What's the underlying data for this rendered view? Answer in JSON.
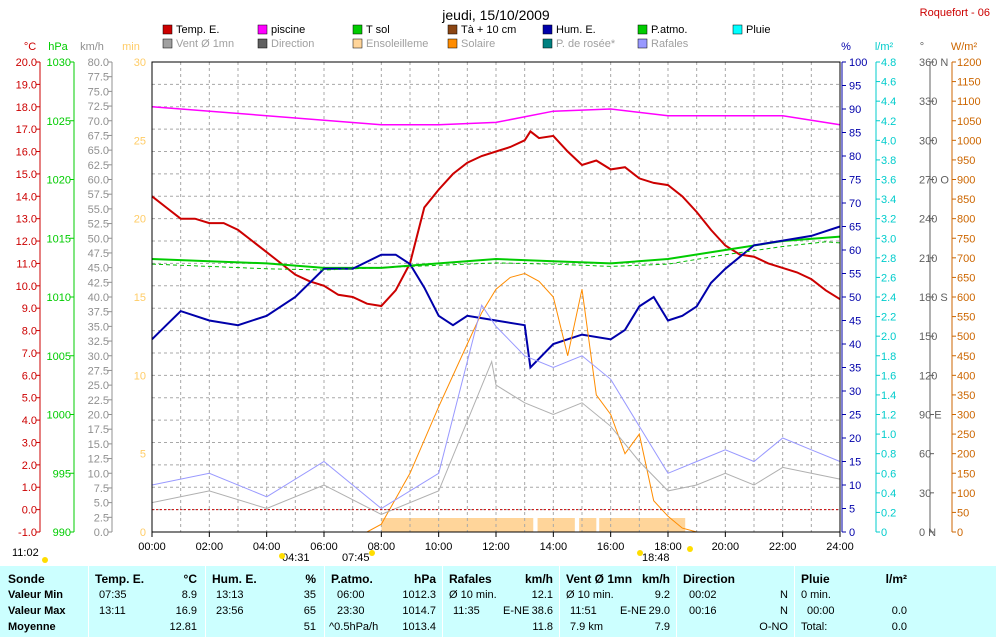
{
  "title": "jeudi, 15/10/2009",
  "station": "Roquefort - 06",
  "legend": [
    {
      "label": "Temp. E.",
      "color": "#cc0000"
    },
    {
      "label": "piscine",
      "color": "#ff00ff"
    },
    {
      "label": "T sol",
      "color": "#00cc00"
    },
    {
      "label": "Tà + 10 cm",
      "color": "#8b4513"
    },
    {
      "label": "Hum. E.",
      "color": "#0000aa"
    },
    {
      "label": "P.atmo.",
      "color": "#00cc00"
    },
    {
      "label": "Pluie",
      "color": "#00ffff"
    },
    {
      "label": "Vent Ø 1mn",
      "color": "#a0a0a0"
    },
    {
      "label": "Direction",
      "color": "#606060"
    },
    {
      "label": "Ensoleilleme",
      "color": "#ffd59a"
    },
    {
      "label": "Solaire",
      "color": "#ff8c00"
    },
    {
      "label": "P. de rosée*",
      "color": "#008080"
    },
    {
      "label": "Rafales",
      "color": "#9999ff"
    }
  ],
  "axes": {
    "temp": {
      "unit": "°C",
      "color": "#cc0000",
      "ticks": [
        "20.0",
        "19.0",
        "18.0",
        "17.0",
        "16.0",
        "15.0",
        "14.0",
        "13.0",
        "12.0",
        "11.0",
        "10.0",
        "9.0",
        "8.0",
        "7.0",
        "6.0",
        "5.0",
        "4.0",
        "3.0",
        "2.0",
        "1.0",
        "0.0",
        "-1.0"
      ]
    },
    "pressure": {
      "unit": "hPa",
      "color": "#00cc00",
      "ticks": [
        "1030",
        "1025",
        "1020",
        "1015",
        "1010",
        "1005",
        "1000",
        "995",
        "990"
      ]
    },
    "wind": {
      "unit": "km/h",
      "color": "#909090",
      "ticks": [
        "80.0",
        "77.5",
        "75.0",
        "72.5",
        "70.0",
        "67.5",
        "65.0",
        "62.5",
        "60.0",
        "57.5",
        "55.0",
        "52.5",
        "50.0",
        "47.5",
        "45.0",
        "42.5",
        "40.0",
        "37.5",
        "35.0",
        "32.5",
        "30.0",
        "27.5",
        "25.0",
        "22.5",
        "20.0",
        "17.5",
        "15.0",
        "12.5",
        "10.0",
        "7.5",
        "5.0",
        "2.5",
        "0.0"
      ]
    },
    "minutes": {
      "unit": "min",
      "color": "#ffcc66",
      "ticks": [
        "30",
        "25",
        "20",
        "15",
        "10",
        "5",
        "0"
      ]
    },
    "humidity": {
      "unit": "%",
      "color": "#0000aa",
      "ticks": [
        "100",
        "95",
        "90",
        "85",
        "80",
        "75",
        "70",
        "65",
        "60",
        "55",
        "50",
        "45",
        "40",
        "35",
        "30",
        "25",
        "20",
        "15",
        "10",
        "5",
        "0"
      ]
    },
    "rain": {
      "unit": "l/m²",
      "color": "#00cccc",
      "ticks": [
        "4.8",
        "4.6",
        "4.4",
        "4.2",
        "4.0",
        "3.8",
        "3.6",
        "3.4",
        "3.2",
        "3.0",
        "2.8",
        "2.6",
        "2.4",
        "2.2",
        "2.0",
        "1.8",
        "1.6",
        "1.4",
        "1.2",
        "1.0",
        "0.8",
        "0.6",
        "0.4",
        "0.2",
        "0"
      ]
    },
    "direction": {
      "unit": "°",
      "color": "#606060",
      "ticks": [
        "360 N",
        "330",
        "300",
        "270 O",
        "240",
        "210",
        "180 S",
        "150",
        "120",
        "90 E",
        "60",
        "30",
        "0 N"
      ]
    },
    "solar": {
      "unit": "W/m²",
      "color": "#cc6600",
      "ticks": [
        "1200",
        "1150",
        "1100",
        "1050",
        "1000",
        "950",
        "900",
        "850",
        "800",
        "750",
        "700",
        "650",
        "600",
        "550",
        "500",
        "450",
        "400",
        "350",
        "300",
        "250",
        "200",
        "150",
        "100",
        "50",
        "0"
      ]
    }
  },
  "time_ticks": [
    "00:00",
    "02:00",
    "04:00",
    "06:00",
    "08:00",
    "10:00",
    "12:00",
    "14:00",
    "16:00",
    "18:00",
    "20:00",
    "22:00",
    "24:00"
  ],
  "sun_markers": [
    "11:02",
    "04:31",
    "07:45",
    "18:48"
  ],
  "stats": {
    "sonde": {
      "h": "Sonde",
      "r1": "Valeur Min",
      "r2": "Valeur Max",
      "r3": "Moyenne"
    },
    "temp": {
      "h": "Temp. E.",
      "u": "°C",
      "r1t": "07:35",
      "r1v": "8.9",
      "r2t": "13:11",
      "r2v": "16.9",
      "r3v": "12.81"
    },
    "hum": {
      "h": "Hum. E.",
      "u": "%",
      "r1t": "13:13",
      "r1v": "35",
      "r2t": "23:56",
      "r2v": "65",
      "r3v": "51"
    },
    "patmo": {
      "h": "P.atmo.",
      "u": "hPa",
      "r1t": "06:00",
      "r1v": "1012.3",
      "r2t": "23:30",
      "r2v": "1014.7",
      "r3t": "^0.5hPa/h",
      "r3v": "1013.4"
    },
    "rafales": {
      "h": "Rafales",
      "u": "km/h",
      "r1t": "Ø 10 min.",
      "r1v": "12.1",
      "r2t": "11:35",
      "r2d": "E-NE",
      "r2v": "38.6",
      "r3v": "11.8"
    },
    "vent": {
      "h": "Vent Ø 1mn",
      "u": "km/h",
      "r1t": "Ø 10 min.",
      "r1v": "9.2",
      "r2t": "11:51",
      "r2d": "E-NE",
      "r2v": "29.0",
      "r3t": "7.9 km",
      "r3v": "7.9"
    },
    "direction": {
      "h": "Direction",
      "r1t": "00:02",
      "r1v": "N",
      "r2t": "00:16",
      "r2v": "N",
      "r3v": "O-NO"
    },
    "pluie": {
      "h": "Pluie",
      "u": "l/m²",
      "r1t": "0 min.",
      "r2t": "00:00",
      "r2v": "0.0",
      "r3t": "Total:",
      "r3v": "0.0"
    }
  },
  "chart_data": {
    "type": "line",
    "title": "jeudi, 15/10/2009",
    "x_range": [
      "00:00",
      "24:00"
    ],
    "series": [
      {
        "name": "Temp. E.",
        "axis": "°C",
        "x": [
          0,
          0.5,
          1,
          1.5,
          2,
          2.5,
          3,
          3.5,
          4,
          4.5,
          5,
          5.5,
          6,
          6.5,
          7,
          7.5,
          8,
          8.5,
          9,
          9.5,
          10,
          10.5,
          11,
          11.5,
          12,
          12.5,
          13,
          13.2,
          13.5,
          14,
          14.5,
          15,
          15.5,
          16,
          16.5,
          17,
          17.5,
          18,
          18.5,
          19,
          19.5,
          20,
          20.5,
          21,
          21.5,
          22,
          22.5,
          23,
          23.5,
          24
        ],
        "y": [
          14.0,
          13.5,
          13.0,
          13.0,
          12.8,
          12.8,
          12.5,
          12.0,
          11.5,
          11.0,
          10.5,
          10.2,
          10.0,
          9.6,
          9.5,
          9.2,
          9.1,
          9.8,
          11.0,
          13.5,
          14.3,
          15.0,
          15.5,
          15.8,
          16.0,
          16.2,
          16.5,
          16.9,
          16.6,
          16.7,
          16.0,
          15.4,
          15.6,
          15.2,
          15.3,
          14.8,
          14.6,
          14.5,
          14.0,
          13.3,
          12.5,
          11.8,
          11.4,
          11.3,
          11.0,
          10.8,
          10.6,
          10.3,
          9.8,
          9.4
        ]
      },
      {
        "name": "T sol",
        "axis": "°C",
        "x": [
          0,
          2,
          4,
          6,
          8,
          10,
          12,
          14,
          16,
          18,
          20,
          22,
          24
        ],
        "y": [
          11.2,
          11.1,
          11.0,
          10.8,
          10.8,
          11.0,
          11.2,
          11.1,
          11.0,
          11.2,
          11.6,
          12.0,
          12.2
        ]
      },
      {
        "name": "piscine",
        "axis": "°C",
        "x": [
          0,
          4,
          8,
          10,
          12,
          14,
          16,
          18,
          20,
          22,
          24
        ],
        "y": [
          18.0,
          17.6,
          17.2,
          17.2,
          17.3,
          17.8,
          17.9,
          17.6,
          17.6,
          17.6,
          17.2
        ]
      },
      {
        "name": "Hum. E.",
        "axis": "%",
        "x": [
          0,
          0.5,
          1,
          2,
          3,
          4,
          5,
          6,
          7,
          8,
          8.5,
          9,
          9.5,
          10,
          10.5,
          11,
          12,
          13,
          13.2,
          14,
          15,
          16,
          16.5,
          17,
          17.5,
          18,
          18.5,
          19,
          19.5,
          20,
          21,
          22,
          23,
          24
        ],
        "y": [
          41,
          44,
          47,
          45,
          44,
          46,
          50,
          56,
          56,
          59,
          59,
          57,
          52,
          46,
          44,
          46,
          45,
          44,
          35,
          40,
          42,
          41,
          43,
          48,
          50,
          45,
          46,
          48,
          53,
          56,
          61,
          62,
          63,
          65
        ]
      },
      {
        "name": "P.atmo.",
        "axis": "hPa",
        "x": [
          0,
          2,
          4,
          6,
          8,
          10,
          12,
          14,
          16,
          18,
          20,
          22,
          23.5,
          24
        ],
        "y": [
          1012.8,
          1012.6,
          1012.4,
          1012.3,
          1012.5,
          1012.7,
          1012.9,
          1012.8,
          1012.6,
          1012.8,
          1013.6,
          1014.3,
          1014.7,
          1014.6
        ]
      },
      {
        "name": "Solaire",
        "axis": "W/m²",
        "x": [
          0,
          7.5,
          8,
          9,
          10,
          11,
          11.5,
          12,
          12.5,
          13,
          13.5,
          14,
          14.5,
          15,
          15.5,
          16,
          16.5,
          17,
          17.5,
          18,
          18.5,
          19,
          24
        ],
        "y": [
          0,
          0,
          20,
          150,
          320,
          480,
          560,
          620,
          650,
          660,
          640,
          600,
          450,
          620,
          350,
          300,
          200,
          250,
          80,
          40,
          10,
          0,
          0
        ]
      },
      {
        "name": "Rafales",
        "axis": "km/h",
        "x": [
          0,
          2,
          4,
          6,
          8,
          10,
          11.5,
          12,
          13,
          14,
          15,
          16,
          17,
          18,
          19,
          20,
          21,
          22,
          23,
          24
        ],
        "y": [
          8,
          10,
          6,
          12,
          4,
          10,
          38.6,
          35,
          30,
          28,
          30,
          26,
          18,
          10,
          12,
          14,
          12,
          16,
          14,
          12
        ]
      },
      {
        "name": "Vent Ø 1mn",
        "axis": "km/h",
        "x": [
          0,
          2,
          4,
          6,
          8,
          10,
          11.85,
          12,
          13,
          14,
          15,
          16,
          17,
          18,
          19,
          20,
          21,
          22,
          23,
          24
        ],
        "y": [
          5,
          7,
          4,
          8,
          3,
          7,
          29.0,
          25,
          22,
          20,
          22,
          18,
          12,
          7,
          8,
          10,
          8,
          11,
          10,
          9
        ]
      }
    ]
  }
}
